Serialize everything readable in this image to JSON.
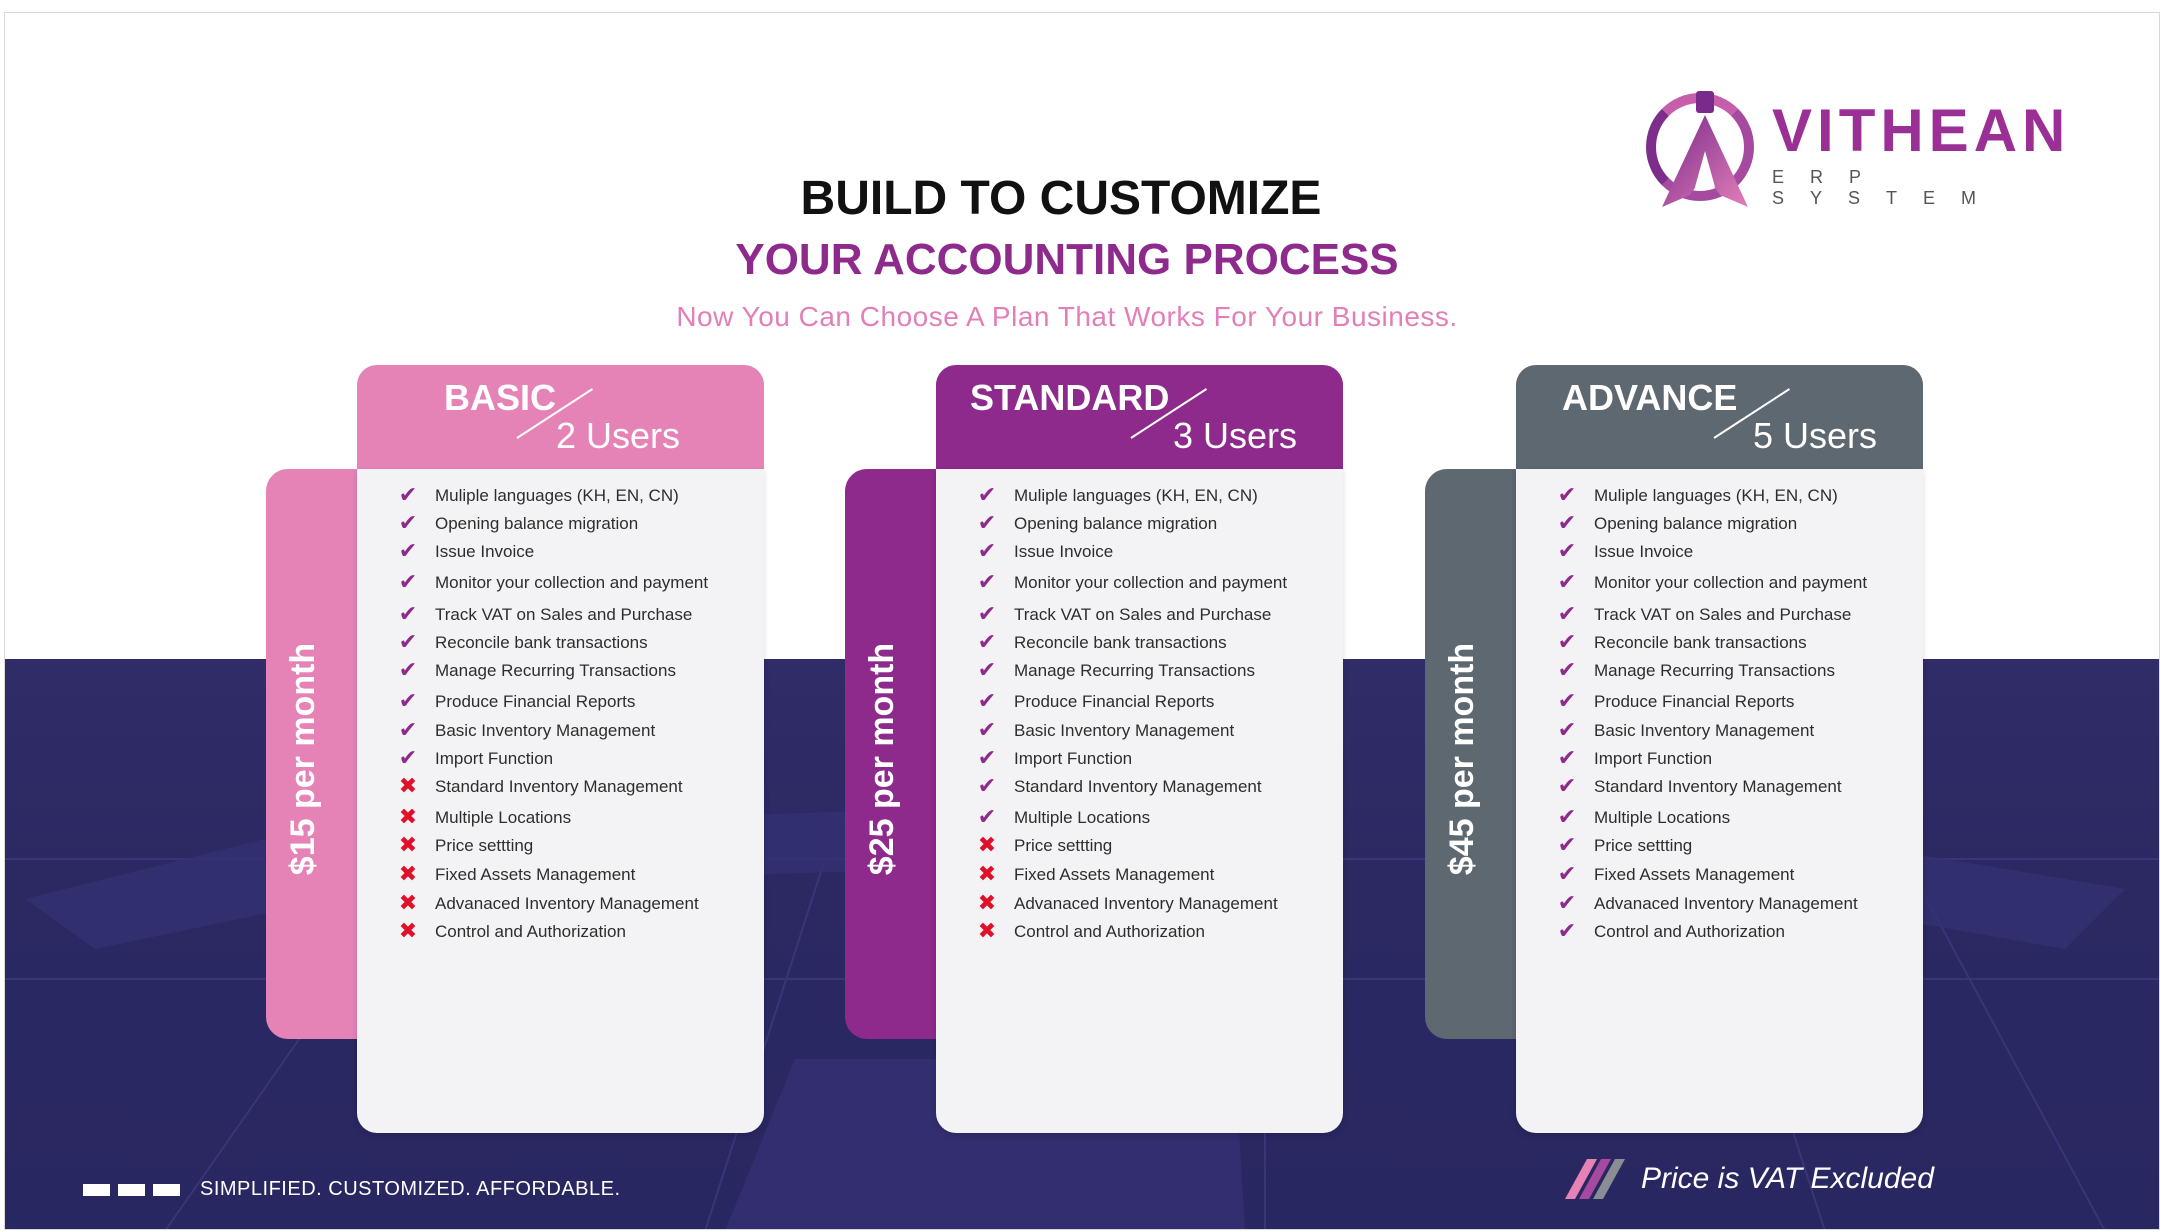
{
  "brand": {
    "name": "VITHEAN",
    "subtitle": "ERP SYSTEM",
    "colors": {
      "purple": "#8e2a8c",
      "pink": "#e583b6",
      "gray": "#5e6870",
      "navy": "#2b2862"
    }
  },
  "header": {
    "title": "BUILD TO CUSTOMIZE",
    "subtitle": "YOUR ACCOUNTING PROCESS",
    "tagline": "Now You Can Choose A Plan That Works For Your Business."
  },
  "plans": [
    {
      "name": "BASIC",
      "users": "2 Users",
      "price": "$15 per month",
      "color": "#e583b6",
      "features": [
        {
          "label": "Muliple languages (KH, EN, CN)",
          "included": true
        },
        {
          "label": "Opening balance migration",
          "included": true
        },
        {
          "label": "Issue Invoice",
          "included": true
        },
        {
          "label": "Monitor your collection and payment",
          "included": true
        },
        {
          "label": "Track VAT on Sales and Purchase",
          "included": true
        },
        {
          "label": "Reconcile bank transactions",
          "included": true
        },
        {
          "label": "Manage Recurring Transactions",
          "included": true
        },
        {
          "label": "Produce Financial Reports",
          "included": true
        },
        {
          "label": "Basic Inventory Management",
          "included": true
        },
        {
          "label": "Import Function",
          "included": true
        },
        {
          "label": "Standard Inventory Management",
          "included": false
        },
        {
          "label": "Multiple Locations",
          "included": false
        },
        {
          "label": "Price settting",
          "included": false
        },
        {
          "label": "Fixed Assets Management",
          "included": false
        },
        {
          "label": "Advanaced Inventory Management",
          "included": false
        },
        {
          "label": "Control and Authorization",
          "included": false
        }
      ]
    },
    {
      "name": "STANDARD",
      "users": "3 Users",
      "price": "$25 per month",
      "color": "#8e2a8c",
      "features": [
        {
          "label": "Muliple languages (KH, EN, CN)",
          "included": true
        },
        {
          "label": "Opening balance migration",
          "included": true
        },
        {
          "label": "Issue Invoice",
          "included": true
        },
        {
          "label": "Monitor your collection and payment",
          "included": true
        },
        {
          "label": "Track VAT on Sales and Purchase",
          "included": true
        },
        {
          "label": "Reconcile bank transactions",
          "included": true
        },
        {
          "label": "Manage Recurring Transactions",
          "included": true
        },
        {
          "label": "Produce Financial Reports",
          "included": true
        },
        {
          "label": "Basic Inventory Management",
          "included": true
        },
        {
          "label": "Import Function",
          "included": true
        },
        {
          "label": "Standard Inventory Management",
          "included": true
        },
        {
          "label": "Multiple Locations",
          "included": true
        },
        {
          "label": "Price settting",
          "included": false
        },
        {
          "label": "Fixed Assets Management",
          "included": false
        },
        {
          "label": "Advanaced Inventory Management",
          "included": false
        },
        {
          "label": "Control and Authorization",
          "included": false
        }
      ]
    },
    {
      "name": "ADVANCE",
      "users": "5 Users",
      "price": "$45 per month",
      "color": "#5e6870",
      "features": [
        {
          "label": "Muliple languages (KH, EN, CN)",
          "included": true
        },
        {
          "label": "Opening balance migration",
          "included": true
        },
        {
          "label": "Issue Invoice",
          "included": true
        },
        {
          "label": "Monitor your collection and payment",
          "included": true
        },
        {
          "label": "Track VAT on Sales and Purchase",
          "included": true
        },
        {
          "label": "Reconcile bank transactions",
          "included": true
        },
        {
          "label": "Manage Recurring Transactions",
          "included": true
        },
        {
          "label": "Produce Financial Reports",
          "included": true
        },
        {
          "label": "Basic Inventory Management",
          "included": true
        },
        {
          "label": "Import Function",
          "included": true
        },
        {
          "label": "Standard Inventory Management",
          "included": true
        },
        {
          "label": "Multiple Locations",
          "included": true
        },
        {
          "label": "Price settting",
          "included": true
        },
        {
          "label": "Fixed Assets Management",
          "included": true
        },
        {
          "label": "Advanaced Inventory Management",
          "included": true
        },
        {
          "label": "Control and Authorization",
          "included": true
        }
      ]
    }
  ],
  "footer": {
    "tagline": "SIMPLIFIED. CUSTOMIZED. AFFORDABLE.",
    "vat_note": "Price is VAT Excluded"
  },
  "icons": {
    "included": "check-icon",
    "excluded": "cross-icon"
  }
}
